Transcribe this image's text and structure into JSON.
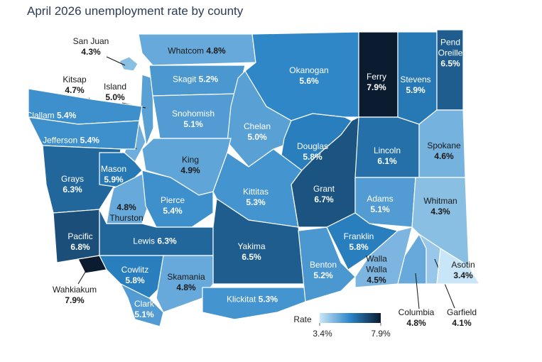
{
  "title": "April 2026 unemployment rate by county",
  "counties": [
    {
      "name": "San Juan",
      "rate": 4.3,
      "rate_label": "4.3%"
    },
    {
      "name": "Whatcom",
      "rate": 4.8,
      "rate_label": "4.8%"
    },
    {
      "name": "Okanogan",
      "rate": 5.6,
      "rate_label": "5.6%"
    },
    {
      "name": "Ferry",
      "rate": 7.9,
      "rate_label": "7.9%"
    },
    {
      "name": "Stevens",
      "rate": 5.9,
      "rate_label": "5.9%"
    },
    {
      "name": "Pend Oreille",
      "rate": 6.5,
      "rate_label": "6.5%"
    },
    {
      "name": "Kitsap",
      "rate": 4.7,
      "rate_label": "4.7%"
    },
    {
      "name": "Island",
      "rate": 5.0,
      "rate_label": "5.0%"
    },
    {
      "name": "Skagit",
      "rate": 5.2,
      "rate_label": "5.2%"
    },
    {
      "name": "Snohomish",
      "rate": 5.1,
      "rate_label": "5.1%"
    },
    {
      "name": "Chelan",
      "rate": 5.0,
      "rate_label": "5.0%"
    },
    {
      "name": "Douglas",
      "rate": 5.8,
      "rate_label": "5.8%"
    },
    {
      "name": "Lincoln",
      "rate": 6.1,
      "rate_label": "6.1%"
    },
    {
      "name": "Spokane",
      "rate": 4.6,
      "rate_label": "4.6%"
    },
    {
      "name": "Clallam",
      "rate": 5.4,
      "rate_label": "5.4%"
    },
    {
      "name": "Jefferson",
      "rate": 5.4,
      "rate_label": "5.4%"
    },
    {
      "name": "King",
      "rate": 4.9,
      "rate_label": "4.9%"
    },
    {
      "name": "Grays",
      "rate": 6.3,
      "rate_label": "6.3%"
    },
    {
      "name": "Mason",
      "rate": 5.9,
      "rate_label": "5.9%"
    },
    {
      "name": "Thurston",
      "rate": 4.8,
      "rate_label": "4.8%"
    },
    {
      "name": "Pierce",
      "rate": 5.4,
      "rate_label": "5.4%"
    },
    {
      "name": "Kittitas",
      "rate": 5.3,
      "rate_label": "5.3%"
    },
    {
      "name": "Grant",
      "rate": 6.7,
      "rate_label": "6.7%"
    },
    {
      "name": "Adams",
      "rate": 5.1,
      "rate_label": "5.1%"
    },
    {
      "name": "Whitman",
      "rate": 4.3,
      "rate_label": "4.3%"
    },
    {
      "name": "Pacific",
      "rate": 6.8,
      "rate_label": "6.8%"
    },
    {
      "name": "Lewis",
      "rate": 6.3,
      "rate_label": "6.3%"
    },
    {
      "name": "Yakima",
      "rate": 6.5,
      "rate_label": "6.5%"
    },
    {
      "name": "Wahkiakum",
      "rate": 7.9,
      "rate_label": "7.9%"
    },
    {
      "name": "Cowlitz",
      "rate": 5.8,
      "rate_label": "5.8%"
    },
    {
      "name": "Skamania",
      "rate": 4.8,
      "rate_label": "4.8%"
    },
    {
      "name": "Clark",
      "rate": 5.1,
      "rate_label": "5.1%"
    },
    {
      "name": "Klickitat",
      "rate": 5.3,
      "rate_label": "5.3%"
    },
    {
      "name": "Benton",
      "rate": 5.2,
      "rate_label": "5.2%"
    },
    {
      "name": "Franklin",
      "rate": 5.8,
      "rate_label": "5.8%"
    },
    {
      "name": "Walla Walla",
      "rate": 4.5,
      "rate_label": "4.5%"
    },
    {
      "name": "Columbia",
      "rate": 4.8,
      "rate_label": "4.8%"
    },
    {
      "name": "Garfield",
      "rate": 4.1,
      "rate_label": "4.1%"
    },
    {
      "name": "Asotin",
      "rate": 3.4,
      "rate_label": "3.4%"
    }
  ],
  "legend": {
    "title": "Rate",
    "min": 3.4,
    "max": 7.9,
    "min_label": "3.4%",
    "max_label": "7.9%",
    "colors": [
      "#c9e5f8",
      "#2b85c7",
      "#0b1c30"
    ]
  }
}
